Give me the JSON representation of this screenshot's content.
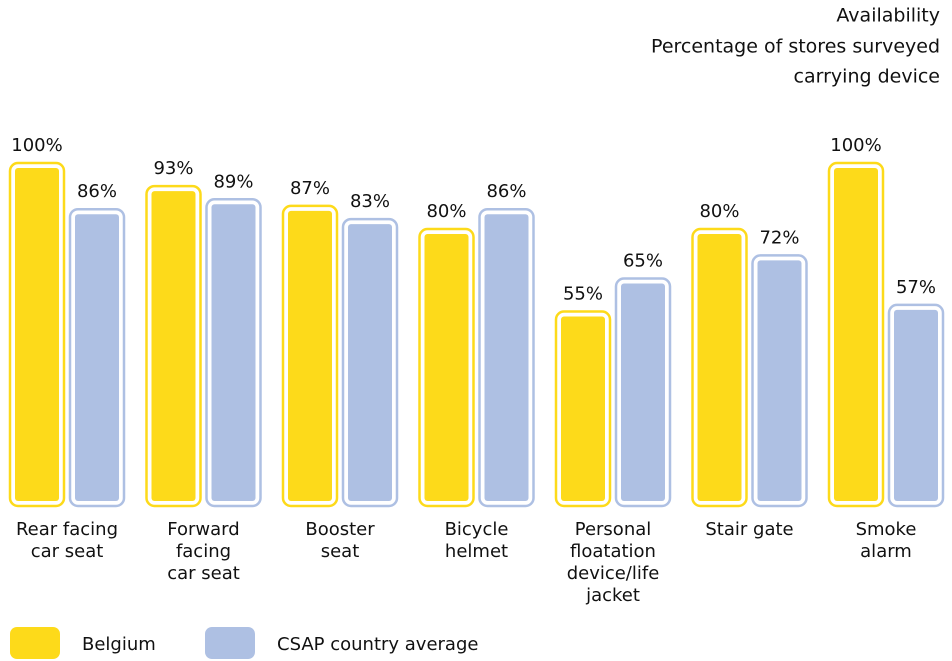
{
  "chart_data": {
    "type": "bar",
    "title": "Availability",
    "subtitle": [
      "Percentage of stores surveyed",
      "carrying device"
    ],
    "categories": [
      "Rear facing\ncar seat",
      "Forward\nfacing\ncar seat",
      "Booster\nseat",
      "Bicycle\nhelmet",
      "Personal\nfloatation\ndevice/life\njacket",
      "Stair gate",
      "Smoke\nalarm"
    ],
    "series": [
      {
        "name": "Belgium",
        "color": "#fdda1a",
        "values": [
          100,
          93,
          87,
          80,
          55,
          80,
          100
        ],
        "value_labels": [
          "100%",
          "93%",
          "87%",
          "80%",
          "55%",
          "80%",
          "100%"
        ]
      },
      {
        "name": "CSAP country average",
        "color": "#aec0e3",
        "values": [
          86,
          89,
          83,
          86,
          65,
          72,
          57
        ],
        "value_labels": [
          "86%",
          "89%",
          "83%",
          "86%",
          "65%",
          "72%",
          "57%"
        ]
      }
    ]
  }
}
